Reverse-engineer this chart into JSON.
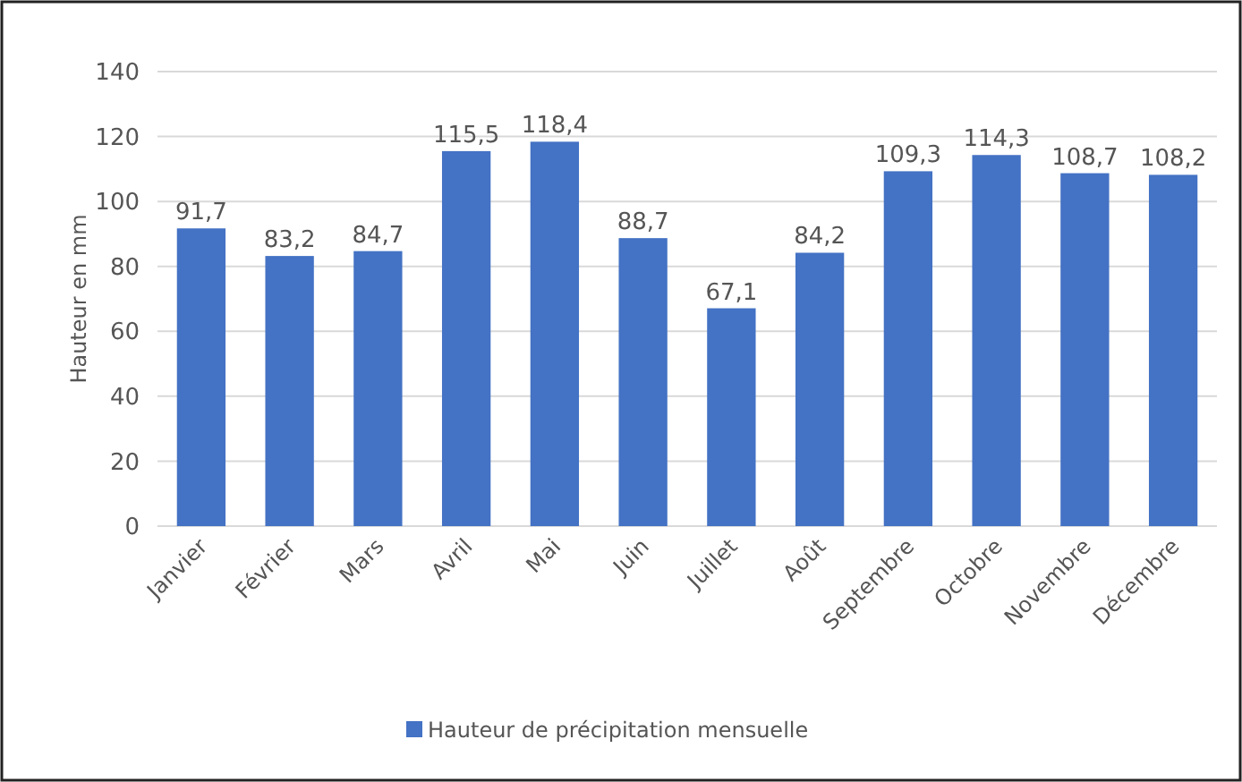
{
  "chart_data": {
    "type": "bar",
    "ylabel": "Hauteur en mm",
    "categories": [
      "Janvier",
      "Février",
      "Mars",
      "Avril",
      "Mai",
      "Juin",
      "Juillet",
      "Août",
      "Septembre",
      "Octobre",
      "Novembre",
      "Décembre"
    ],
    "series": [
      {
        "name": "Hauteur de précipitation mensuelle",
        "color": "#4472c4",
        "values": [
          91.7,
          83.2,
          84.7,
          115.5,
          118.4,
          88.7,
          67.1,
          84.2,
          109.3,
          114.3,
          108.7,
          108.2
        ],
        "value_labels": [
          "91,7",
          "83,2",
          "84,7",
          "115,5",
          "118,4",
          "88,7",
          "67,1",
          "84,2",
          "109,3",
          "114,3",
          "108,7",
          "108,2"
        ]
      }
    ],
    "ylim": [
      0,
      140
    ],
    "yticks": [
      0,
      20,
      40,
      60,
      80,
      100,
      120,
      140
    ],
    "grid": "y",
    "legend": "bottom"
  }
}
